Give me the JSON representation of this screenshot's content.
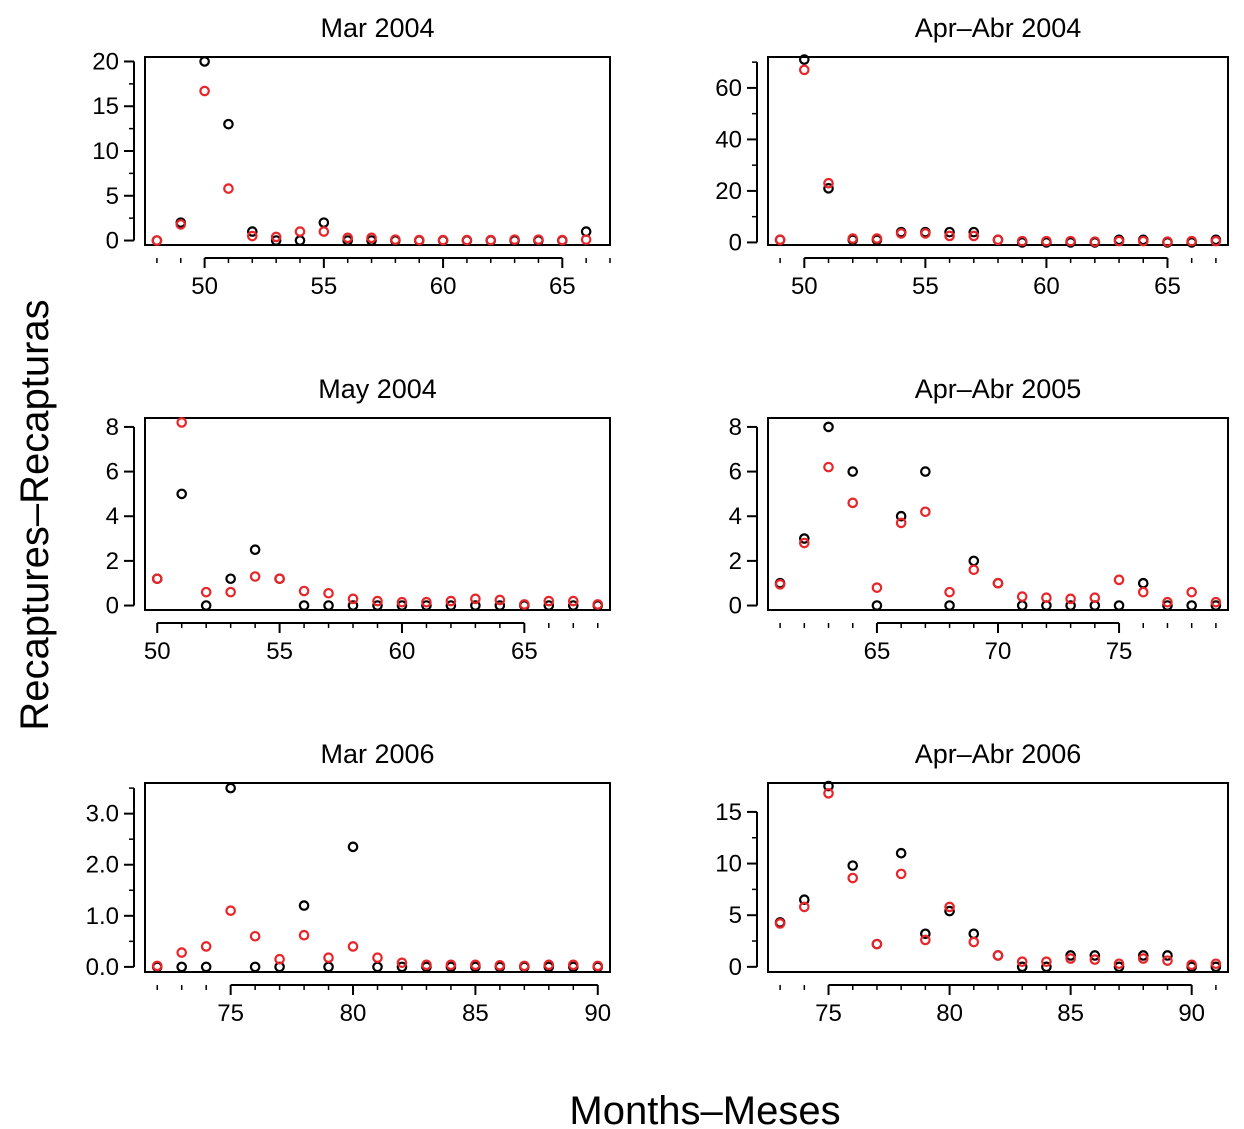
{
  "figure": {
    "ylabel": "Recaptures–Recapturas",
    "xlabel": "Months–Meses"
  },
  "chart_data": [
    {
      "type": "scatter",
      "title": "Mar 2004",
      "xlim": [
        47.5,
        67
      ],
      "ylim": [
        -0.5,
        20.5
      ],
      "xticks": [
        50,
        55,
        60,
        65
      ],
      "yticks": [
        0,
        5,
        10,
        15,
        20
      ],
      "yminor": [
        2.5,
        7.5,
        12.5,
        17.5
      ],
      "series": [
        {
          "color": "#000000",
          "x": [
            48,
            49,
            50,
            51,
            52,
            53,
            54,
            55,
            56,
            57,
            58,
            59,
            60,
            61,
            62,
            63,
            64,
            65,
            66
          ],
          "y": [
            0,
            2,
            20,
            13,
            1,
            0,
            0,
            2,
            0,
            0,
            0,
            0,
            0,
            0,
            0,
            0,
            0,
            0,
            1
          ]
        },
        {
          "color": "#e8262a",
          "x": [
            48,
            49,
            50,
            51,
            52,
            53,
            54,
            55,
            56,
            57,
            58,
            59,
            60,
            61,
            62,
            63,
            64,
            65,
            66
          ],
          "y": [
            0,
            1.8,
            16.7,
            5.8,
            0.5,
            0.4,
            1.0,
            1.0,
            0.3,
            0.3,
            0.1,
            0.05,
            0.05,
            0.05,
            0.05,
            0.1,
            0.1,
            0.05,
            0.1
          ]
        }
      ]
    },
    {
      "type": "scatter",
      "title": "Apr–Abr 2004",
      "xlim": [
        48.5,
        67.5
      ],
      "ylim": [
        -1,
        72
      ],
      "xticks": [
        50,
        55,
        60,
        65
      ],
      "yticks": [
        0,
        20,
        40,
        60
      ],
      "yminor": [
        10,
        30,
        50,
        70
      ],
      "series": [
        {
          "color": "#000000",
          "x": [
            49,
            50,
            51,
            52,
            53,
            54,
            55,
            56,
            57,
            58,
            59,
            60,
            61,
            62,
            63,
            64,
            65,
            66,
            67
          ],
          "y": [
            1,
            71,
            21,
            1,
            1,
            4,
            4,
            4,
            4,
            1,
            0,
            0,
            0,
            0,
            1,
            1,
            0,
            0,
            1
          ]
        },
        {
          "color": "#e8262a",
          "x": [
            49,
            50,
            51,
            52,
            53,
            54,
            55,
            56,
            57,
            58,
            59,
            60,
            61,
            62,
            63,
            64,
            65,
            66,
            67
          ],
          "y": [
            1,
            67,
            23,
            1.5,
            1.5,
            3.5,
            3.5,
            2.5,
            2.5,
            1,
            0.5,
            0.5,
            0.5,
            0.3,
            0.5,
            0.5,
            0.3,
            0.5,
            0.5
          ]
        }
      ]
    },
    {
      "type": "scatter",
      "title": "May 2004",
      "xlim": [
        49.5,
        68.5
      ],
      "ylim": [
        -0.2,
        8.4
      ],
      "xticks": [
        50,
        55,
        60,
        65
      ],
      "yticks": [
        0,
        2,
        4,
        6,
        8
      ],
      "yminor": [],
      "series": [
        {
          "color": "#000000",
          "x": [
            50,
            51,
            52,
            53,
            54,
            55,
            56,
            57,
            58,
            59,
            60,
            61,
            62,
            63,
            64,
            65,
            66,
            67,
            68
          ],
          "y": [
            1.2,
            5,
            0,
            1.2,
            2.5,
            1.2,
            0,
            0,
            0,
            0,
            0,
            0,
            0,
            0,
            0,
            0,
            0,
            0,
            0
          ]
        },
        {
          "color": "#e8262a",
          "x": [
            50,
            51,
            52,
            53,
            54,
            55,
            56,
            57,
            58,
            59,
            60,
            61,
            62,
            63,
            64,
            65,
            66,
            67,
            68
          ],
          "y": [
            1.2,
            8.2,
            0.6,
            0.6,
            1.3,
            1.2,
            0.65,
            0.55,
            0.3,
            0.2,
            0.15,
            0.15,
            0.2,
            0.3,
            0.25,
            0.05,
            0.2,
            0.2,
            0.05
          ]
        }
      ]
    },
    {
      "type": "scatter",
      "title": "Apr–Abr 2005",
      "xlim": [
        60.5,
        79.5
      ],
      "ylim": [
        -0.2,
        8.4
      ],
      "xticks": [
        65,
        70,
        75
      ],
      "yticks": [
        0,
        2,
        4,
        6,
        8
      ],
      "yminor": [],
      "series": [
        {
          "color": "#000000",
          "x": [
            61,
            62,
            63,
            64,
            65,
            66,
            67,
            68,
            69,
            70,
            71,
            72,
            73,
            74,
            75,
            76,
            77,
            78,
            79
          ],
          "y": [
            1,
            3,
            8,
            6,
            0,
            4,
            6,
            0,
            2,
            1,
            0,
            0,
            0,
            0,
            0,
            1,
            0,
            0,
            0
          ]
        },
        {
          "color": "#e8262a",
          "x": [
            61,
            62,
            63,
            64,
            65,
            66,
            67,
            68,
            69,
            70,
            71,
            72,
            73,
            74,
            75,
            76,
            77,
            78,
            79
          ],
          "y": [
            0.95,
            2.8,
            6.2,
            4.6,
            0.8,
            3.7,
            4.2,
            0.6,
            1.6,
            1.0,
            0.4,
            0.35,
            0.3,
            0.35,
            1.15,
            0.6,
            0.15,
            0.6,
            0.15
          ]
        }
      ]
    },
    {
      "type": "scatter",
      "title": "Mar 2006",
      "xlim": [
        71.5,
        90.5
      ],
      "ylim": [
        -0.1,
        3.6
      ],
      "xticks": [
        75,
        80,
        85,
        90
      ],
      "yticks": [
        0,
        1,
        2,
        3
      ],
      "ytick_labels": [
        "0.0",
        "1.0",
        "2.0",
        "3.0"
      ],
      "yminor": [
        0.5,
        1.5,
        2.5,
        3.5
      ],
      "series": [
        {
          "color": "#000000",
          "x": [
            72,
            73,
            74,
            75,
            76,
            77,
            78,
            79,
            80,
            81,
            82,
            83,
            84,
            85,
            86,
            87,
            88,
            89,
            90
          ],
          "y": [
            0,
            0,
            0,
            3.5,
            0,
            0,
            1.2,
            0,
            2.35,
            0,
            0,
            0,
            0,
            0,
            0,
            0,
            0,
            0,
            0
          ]
        },
        {
          "color": "#e8262a",
          "x": [
            72,
            73,
            74,
            75,
            76,
            77,
            78,
            79,
            80,
            81,
            82,
            83,
            84,
            85,
            86,
            87,
            88,
            89,
            90
          ],
          "y": [
            0.02,
            0.28,
            0.4,
            1.1,
            0.6,
            0.15,
            0.62,
            0.18,
            0.4,
            0.18,
            0.08,
            0.04,
            0.04,
            0.04,
            0.03,
            0.02,
            0.04,
            0.04,
            0.02
          ]
        }
      ]
    },
    {
      "type": "scatter",
      "title": "Apr–Abr 2006",
      "xlim": [
        72.5,
        91.5
      ],
      "ylim": [
        -0.5,
        17.8
      ],
      "xticks": [
        75,
        80,
        85,
        90
      ],
      "yticks": [
        0,
        5,
        10,
        15
      ],
      "yminor": [
        2.5,
        7.5,
        12.5
      ],
      "series": [
        {
          "color": "#000000",
          "x": [
            73,
            74,
            75,
            76,
            77,
            78,
            79,
            80,
            81,
            82,
            83,
            84,
            85,
            86,
            87,
            88,
            89,
            90,
            91
          ],
          "y": [
            4.3,
            6.5,
            17.5,
            9.8,
            2.2,
            11,
            3.2,
            5.4,
            3.2,
            1.1,
            0,
            0,
            1.1,
            1.1,
            0,
            1.1,
            1.1,
            0,
            0
          ]
        },
        {
          "color": "#e8262a",
          "x": [
            73,
            74,
            75,
            76,
            77,
            78,
            79,
            80,
            81,
            82,
            83,
            84,
            85,
            86,
            87,
            88,
            89,
            90,
            91
          ],
          "y": [
            4.2,
            5.8,
            16.8,
            8.6,
            2.2,
            9.0,
            2.6,
            5.8,
            2.4,
            1.1,
            0.5,
            0.5,
            0.8,
            0.7,
            0.3,
            0.8,
            0.6,
            0.2,
            0.3
          ]
        }
      ]
    }
  ]
}
